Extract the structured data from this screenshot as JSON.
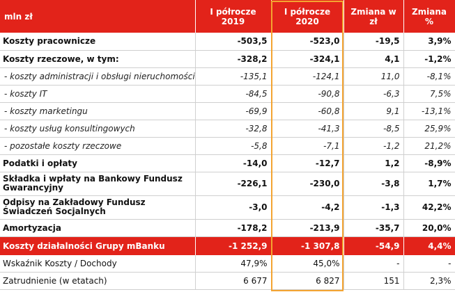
{
  "table": {
    "headers": [
      "mln zł",
      "I półrocze 2019",
      "I półrocze 2020",
      "Zmiana w zł",
      "Zmiana %"
    ],
    "rows": [
      {
        "label": "Koszty pracownicze",
        "h1_2019": "-503,5",
        "h1_2020": "-523,0",
        "change_pln": "-19,5",
        "change_pct": "3,9%"
      },
      {
        "label": "Koszty rzeczowe, w tym:",
        "h1_2019": "-328,2",
        "h1_2020": "-324,1",
        "change_pln": "4,1",
        "change_pct": "-1,2%"
      },
      {
        "label": "- koszty administracji i obsługi nieruchomości",
        "h1_2019": "-135,1",
        "h1_2020": "-124,1",
        "change_pln": "11,0",
        "change_pct": "-8,1%"
      },
      {
        "label": "- koszty IT",
        "h1_2019": "-84,5",
        "h1_2020": "-90,8",
        "change_pln": "-6,3",
        "change_pct": "7,5%"
      },
      {
        "label": "- koszty marketingu",
        "h1_2019": "-69,9",
        "h1_2020": "-60,8",
        "change_pln": "9,1",
        "change_pct": "-13,1%"
      },
      {
        "label": "- koszty usług konsultingowych",
        "h1_2019": "-32,8",
        "h1_2020": "-41,3",
        "change_pln": "-8,5",
        "change_pct": "25,9%"
      },
      {
        "label": "- pozostałe koszty rzeczowe",
        "h1_2019": "-5,8",
        "h1_2020": "-7,1",
        "change_pln": "-1,2",
        "change_pct": "21,2%"
      },
      {
        "label": "Podatki i opłaty",
        "h1_2019": "-14,0",
        "h1_2020": "-12,7",
        "change_pln": "1,2",
        "change_pct": "-8,9%"
      },
      {
        "label": "Składka i wpłaty na Bankowy Fundusz Gwarancyjny",
        "h1_2019": "-226,1",
        "h1_2020": "-230,0",
        "change_pln": "-3,8",
        "change_pct": "1,7%"
      },
      {
        "label": "Odpisy na Zakładowy Fundusz Świadczeń Socjalnych",
        "h1_2019": "-3,0",
        "h1_2020": "-4,2",
        "change_pln": "-1,3",
        "change_pct": "42,2%"
      },
      {
        "label": "Amortyzacja",
        "h1_2019": "-178,2",
        "h1_2020": "-213,9",
        "change_pln": "-35,7",
        "change_pct": "20,0%"
      },
      {
        "label": "Koszty działalności Grupy mBanku",
        "h1_2019": "-1 252,9",
        "h1_2020": "-1 307,8",
        "change_pln": "-54,9",
        "change_pct": "4,4%"
      },
      {
        "label": "Wskaźnik Koszty / Dochody",
        "h1_2019": "47,9%",
        "h1_2020": "45,0%",
        "change_pln": "-",
        "change_pct": "-"
      },
      {
        "label": "Zatrudnienie (w etatach)",
        "h1_2019": "6 677",
        "h1_2020": "6 827",
        "change_pln": "151",
        "change_pct": "2,3%"
      }
    ]
  },
  "colors": {
    "header_bg": "#e2231a",
    "highlight_border": "#f4a431"
  }
}
